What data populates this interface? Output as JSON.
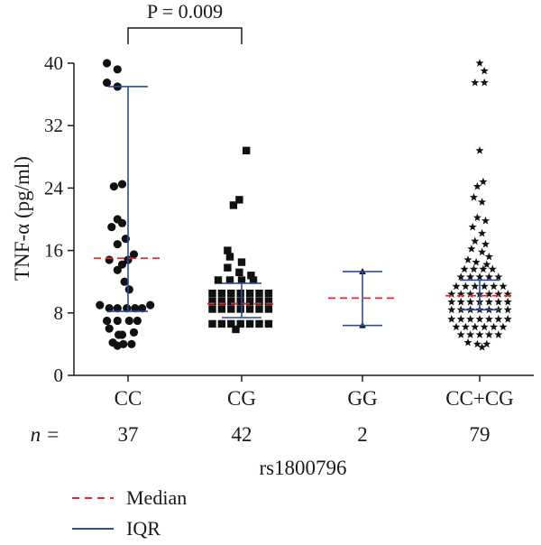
{
  "chart_data": {
    "type": "scatter",
    "ylabel": "TNF-α (pg/ml)",
    "xlabel": "rs1800796",
    "ylim": [
      0,
      40
    ],
    "yticks": [
      0,
      8,
      16,
      24,
      32,
      40
    ],
    "categories": [
      "CC",
      "CG",
      "GG",
      "CC+CG"
    ],
    "n_label": "n =",
    "n_values": [
      "37",
      "42",
      "2",
      "79"
    ],
    "significance": {
      "label": "P = 0.009",
      "between": [
        "CC",
        "CG"
      ]
    },
    "legend": {
      "median": "Median",
      "iqr": "IQR"
    },
    "colors": {
      "median": "#e8262a",
      "iqr": "#2c4ba0",
      "points": "#111111"
    },
    "series": [
      {
        "category": "CC",
        "marker": "circle",
        "median": 15.0,
        "iqr": [
          8.2,
          37.0
        ],
        "points": [
          [
            -0.18,
            40.0
          ],
          [
            -0.09,
            39.2
          ],
          [
            -0.18,
            37.5
          ],
          [
            -0.09,
            37.0
          ],
          [
            -0.05,
            24.5
          ],
          [
            -0.12,
            24.2
          ],
          [
            -0.09,
            20.0
          ],
          [
            -0.05,
            19.5
          ],
          [
            -0.14,
            19.0
          ],
          [
            -0.02,
            17.5
          ],
          [
            -0.09,
            16.8
          ],
          [
            0.05,
            15.5
          ],
          [
            -0.16,
            14.8
          ],
          [
            0.0,
            14.8
          ],
          [
            -0.05,
            14.2
          ],
          [
            -0.09,
            13.5
          ],
          [
            -0.03,
            12.0
          ],
          [
            0.01,
            11.0
          ],
          [
            -0.24,
            9.0
          ],
          [
            -0.16,
            8.6
          ],
          [
            -0.09,
            8.6
          ],
          [
            -0.01,
            8.6
          ],
          [
            0.06,
            8.6
          ],
          [
            0.12,
            8.6
          ],
          [
            0.19,
            9.0
          ],
          [
            -0.18,
            7.0
          ],
          [
            -0.09,
            7.0
          ],
          [
            0.01,
            7.0
          ],
          [
            0.08,
            7.0
          ],
          [
            -0.16,
            6.0
          ],
          [
            -0.08,
            5.2
          ],
          [
            -0.05,
            5.2
          ],
          [
            0.05,
            5.5
          ],
          [
            -0.13,
            4.2
          ],
          [
            -0.04,
            4.0
          ],
          [
            0.03,
            4.0
          ],
          [
            -0.09,
            3.8
          ]
        ]
      },
      {
        "category": "CG",
        "marker": "square",
        "median": 9.2,
        "iqr": [
          7.4,
          11.8
        ],
        "points": [
          [
            0.04,
            28.8
          ],
          [
            -0.02,
            22.5
          ],
          [
            -0.07,
            21.8
          ],
          [
            -0.12,
            16.0
          ],
          [
            -0.1,
            15.2
          ],
          [
            0.0,
            14.5
          ],
          [
            -0.12,
            13.8
          ],
          [
            -0.02,
            13.2
          ],
          [
            0.08,
            12.8
          ],
          [
            -0.2,
            12.2
          ],
          [
            -0.1,
            12.2
          ],
          [
            0.0,
            12.2
          ],
          [
            0.1,
            12.2
          ],
          [
            -0.25,
            10.5
          ],
          [
            -0.17,
            10.5
          ],
          [
            -0.09,
            10.5
          ],
          [
            -0.01,
            10.5
          ],
          [
            0.07,
            10.5
          ],
          [
            0.15,
            10.5
          ],
          [
            0.23,
            10.5
          ],
          [
            -0.25,
            9.5
          ],
          [
            -0.17,
            9.5
          ],
          [
            -0.09,
            9.5
          ],
          [
            -0.01,
            9.5
          ],
          [
            0.07,
            9.5
          ],
          [
            0.15,
            9.5
          ],
          [
            0.23,
            9.5
          ],
          [
            -0.25,
            8.5
          ],
          [
            -0.17,
            8.5
          ],
          [
            -0.09,
            8.5
          ],
          [
            -0.01,
            8.5
          ],
          [
            0.07,
            8.5
          ],
          [
            0.15,
            8.5
          ],
          [
            0.23,
            8.5
          ],
          [
            -0.25,
            6.6
          ],
          [
            -0.17,
            6.6
          ],
          [
            -0.09,
            6.6
          ],
          [
            -0.01,
            6.6
          ],
          [
            0.07,
            6.6
          ],
          [
            0.15,
            6.6
          ],
          [
            0.23,
            6.6
          ],
          [
            -0.05,
            5.9
          ]
        ]
      },
      {
        "category": "GG",
        "marker": "triangle",
        "median": 9.9,
        "iqr": [
          6.4,
          13.3
        ],
        "points": [
          [
            0.0,
            13.3
          ],
          [
            0.0,
            6.4
          ]
        ]
      },
      {
        "category": "CC+CG",
        "marker": "star",
        "median": 10.2,
        "iqr": [
          8.4,
          12.2
        ],
        "points": [
          [
            0.0,
            40.0
          ],
          [
            0.04,
            39.0
          ],
          [
            -0.04,
            37.5
          ],
          [
            0.04,
            37.5
          ],
          [
            0.0,
            28.8
          ],
          [
            0.03,
            24.8
          ],
          [
            -0.02,
            24.2
          ],
          [
            -0.05,
            22.8
          ],
          [
            0.02,
            22.2
          ],
          [
            -0.02,
            20.2
          ],
          [
            0.05,
            19.8
          ],
          [
            -0.06,
            19.0
          ],
          [
            0.02,
            18.2
          ],
          [
            -0.04,
            17.2
          ],
          [
            0.05,
            16.8
          ],
          [
            -0.07,
            16.2
          ],
          [
            0.02,
            15.8
          ],
          [
            0.08,
            15.2
          ],
          [
            -0.1,
            14.8
          ],
          [
            -0.03,
            14.5
          ],
          [
            0.06,
            14.2
          ],
          [
            -0.13,
            13.6
          ],
          [
            -0.05,
            13.6
          ],
          [
            0.03,
            13.6
          ],
          [
            0.11,
            13.6
          ],
          [
            -0.16,
            12.6
          ],
          [
            -0.08,
            12.6
          ],
          [
            0.0,
            12.6
          ],
          [
            0.08,
            12.6
          ],
          [
            0.16,
            12.6
          ],
          [
            -0.2,
            11.4
          ],
          [
            -0.12,
            11.4
          ],
          [
            -0.04,
            11.4
          ],
          [
            0.04,
            11.4
          ],
          [
            0.12,
            11.4
          ],
          [
            0.2,
            11.4
          ],
          [
            -0.24,
            10.4
          ],
          [
            -0.16,
            10.4
          ],
          [
            -0.08,
            10.4
          ],
          [
            0.0,
            10.4
          ],
          [
            0.08,
            10.4
          ],
          [
            0.16,
            10.4
          ],
          [
            0.24,
            10.4
          ],
          [
            -0.24,
            9.4
          ],
          [
            -0.16,
            9.4
          ],
          [
            -0.08,
            9.4
          ],
          [
            0.0,
            9.4
          ],
          [
            0.08,
            9.4
          ],
          [
            0.16,
            9.4
          ],
          [
            0.24,
            9.4
          ],
          [
            -0.24,
            8.4
          ],
          [
            -0.16,
            8.4
          ],
          [
            -0.08,
            8.4
          ],
          [
            0.0,
            8.4
          ],
          [
            0.08,
            8.4
          ],
          [
            0.16,
            8.4
          ],
          [
            0.24,
            8.4
          ],
          [
            -0.24,
            7.2
          ],
          [
            -0.16,
            7.2
          ],
          [
            -0.08,
            7.2
          ],
          [
            0.0,
            7.2
          ],
          [
            0.08,
            7.2
          ],
          [
            0.16,
            7.2
          ],
          [
            0.24,
            7.2
          ],
          [
            -0.2,
            6.2
          ],
          [
            -0.12,
            6.2
          ],
          [
            -0.04,
            6.2
          ],
          [
            0.04,
            6.2
          ],
          [
            0.12,
            6.2
          ],
          [
            0.2,
            6.2
          ],
          [
            -0.16,
            5.2
          ],
          [
            -0.08,
            5.2
          ],
          [
            0.0,
            5.2
          ],
          [
            0.08,
            5.2
          ],
          [
            0.16,
            5.2
          ],
          [
            -0.1,
            4.2
          ],
          [
            -0.02,
            4.0
          ],
          [
            0.06,
            4.0
          ],
          [
            0.02,
            3.6
          ]
        ]
      }
    ]
  }
}
